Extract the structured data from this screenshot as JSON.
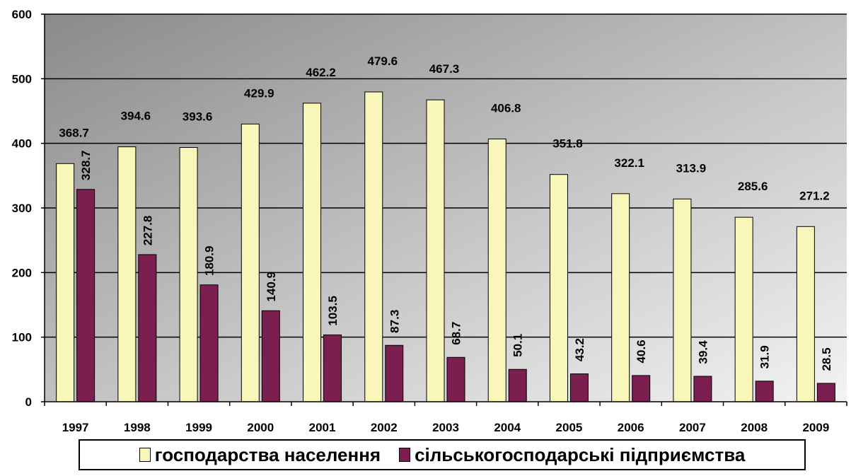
{
  "chart_data": {
    "type": "bar",
    "categories": [
      "1997",
      "1998",
      "1999",
      "2000",
      "2001",
      "2002",
      "2003",
      "2004",
      "2005",
      "2006",
      "2007",
      "2008",
      "2009"
    ],
    "series": [
      {
        "name": "господарства населення",
        "color": "#F8F6B8",
        "values": [
          368.7,
          394.6,
          393.6,
          429.9,
          462.2,
          479.6,
          467.3,
          406.8,
          351.8,
          322.1,
          313.9,
          285.6,
          271.2
        ],
        "labels": [
          "368.7",
          "394.6",
          "393.6",
          "429.9",
          "462.2",
          "479.6",
          "467.3",
          "406.8",
          "351.8",
          "322.1",
          "313.9",
          "285.6",
          "271.2"
        ]
      },
      {
        "name": "сільськогосподарські  підприємства",
        "color": "#7A1F4F",
        "values": [
          328.7,
          227.8,
          180.9,
          140.9,
          103.5,
          87.3,
          68.7,
          50.1,
          43.2,
          40.6,
          39.4,
          31.9,
          28.5
        ],
        "labels": [
          "328.7",
          "227.8",
          "180.9",
          "140.9",
          "103.5",
          "87.3",
          "68.7",
          "50.1",
          "43.2",
          "40.6",
          "39.4",
          "31.9",
          "28.5"
        ]
      }
    ],
    "yticks": [
      "0",
      "100",
      "200",
      "300",
      "400",
      "500",
      "600"
    ],
    "ylim": [
      0,
      600
    ],
    "grid": true,
    "legend": "bottom"
  }
}
